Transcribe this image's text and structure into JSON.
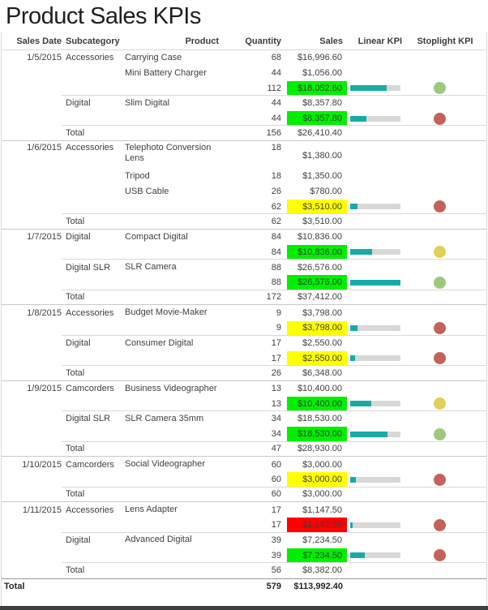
{
  "title": "Product Sales KPIs",
  "columns": [
    "Sales Date",
    "Subcategory",
    "Product",
    "Quantity",
    "Sales",
    "Linear KPI",
    "Stoplight KPI"
  ],
  "palette": {
    "cell_green": "#00f000",
    "cell_yellow": "#ffff00",
    "cell_red": "#ff0000",
    "bar_fill": "#18aba5",
    "bar_track": "#d8d8d8",
    "stoplight_green": "#9dc87e",
    "stoplight_yellow": "#e2cf56",
    "stoplight_red": "#c4625a"
  },
  "groups": [
    {
      "date": "1/5/2015",
      "rows": [
        {
          "type": "detail",
          "subcategory": "Accessories",
          "product": "Carrying Case",
          "quantity": "68",
          "sales": "$16,996.60"
        },
        {
          "type": "detail",
          "subcategory": "",
          "product": "Mini Battery Charger",
          "quantity": "44",
          "sales": "$1,056.00"
        },
        {
          "type": "subtotal",
          "quantity": "112",
          "sales": "$18,052.60",
          "sales_bg": "green",
          "kpi_percent": 72,
          "stoplight": "green"
        },
        {
          "type": "detail",
          "subcategory": "Digital",
          "product": "Slim Digital",
          "quantity": "44",
          "sales": "$8,357.80"
        },
        {
          "type": "subtotal",
          "quantity": "44",
          "sales": "$8,357.80",
          "sales_bg": "green",
          "kpi_percent": 33,
          "stoplight": "red"
        },
        {
          "type": "total",
          "label": "Total",
          "quantity": "156",
          "sales": "$26,410.40"
        }
      ]
    },
    {
      "date": "1/6/2015",
      "rows": [
        {
          "type": "detail",
          "tall": true,
          "subcategory": "Accessories",
          "product": "Telephoto Conversion Lens",
          "quantity": "18",
          "sales": "$1,380.00"
        },
        {
          "type": "detail",
          "subcategory": "",
          "product": "Tripod",
          "quantity": "18",
          "sales": "$1,350.00"
        },
        {
          "type": "detail",
          "subcategory": "",
          "product": "USB Cable",
          "quantity": "26",
          "sales": "$780.00"
        },
        {
          "type": "subtotal",
          "quantity": "62",
          "sales": "$3,510.00",
          "sales_bg": "yellow",
          "kpi_percent": 14,
          "stoplight": "red"
        },
        {
          "type": "total",
          "label": "Total",
          "quantity": "62",
          "sales": "$3,510.00"
        }
      ]
    },
    {
      "date": "1/7/2015",
      "rows": [
        {
          "type": "detail",
          "subcategory": "Digital",
          "product": "Compact Digital",
          "quantity": "84",
          "sales": "$10,836.00"
        },
        {
          "type": "subtotal",
          "quantity": "84",
          "sales": "$10,836.00",
          "sales_bg": "green",
          "kpi_percent": 43,
          "stoplight": "yellow"
        },
        {
          "type": "detail",
          "subcategory": "Digital SLR",
          "product": "SLR Camera",
          "quantity": "88",
          "sales": "$26,576.00"
        },
        {
          "type": "subtotal",
          "quantity": "88",
          "sales": "$26,576.00",
          "sales_bg": "green",
          "kpi_percent": 100,
          "stoplight": "green"
        },
        {
          "type": "total",
          "label": "Total",
          "quantity": "172",
          "sales": "$37,412.00"
        }
      ]
    },
    {
      "date": "1/8/2015",
      "rows": [
        {
          "type": "detail",
          "subcategory": "Accessories",
          "product": "Budget Movie-Maker",
          "quantity": "9",
          "sales": "$3,798.00"
        },
        {
          "type": "subtotal",
          "quantity": "9",
          "sales": "$3,798.00",
          "sales_bg": "yellow",
          "kpi_percent": 15,
          "stoplight": "red"
        },
        {
          "type": "detail",
          "subcategory": "Digital",
          "product": "Consumer Digital",
          "quantity": "17",
          "sales": "$2,550.00"
        },
        {
          "type": "subtotal",
          "quantity": "17",
          "sales": "$2,550.00",
          "sales_bg": "yellow",
          "kpi_percent": 10,
          "stoplight": "red"
        },
        {
          "type": "total",
          "label": "Total",
          "quantity": "26",
          "sales": "$6,348.00"
        }
      ]
    },
    {
      "date": "1/9/2015",
      "rows": [
        {
          "type": "detail",
          "subcategory": "Camcorders",
          "product": "Business Videographer",
          "quantity": "13",
          "sales": "$10,400.00"
        },
        {
          "type": "subtotal",
          "quantity": "13",
          "sales": "$10,400.00",
          "sales_bg": "green",
          "kpi_percent": 42,
          "stoplight": "yellow"
        },
        {
          "type": "detail",
          "subcategory": "Digital SLR",
          "product": "SLR Camera 35mm",
          "quantity": "34",
          "sales": "$18,530.00"
        },
        {
          "type": "subtotal",
          "quantity": "34",
          "sales": "$18,530.00",
          "sales_bg": "green",
          "kpi_percent": 74,
          "stoplight": "green"
        },
        {
          "type": "total",
          "label": "Total",
          "quantity": "47",
          "sales": "$28,930.00"
        }
      ]
    },
    {
      "date": "1/10/2015",
      "rows": [
        {
          "type": "detail",
          "subcategory": "Camcorders",
          "product": "Social Videographer",
          "quantity": "60",
          "sales": "$3,000.00"
        },
        {
          "type": "subtotal",
          "quantity": "60",
          "sales": "$3,000.00",
          "sales_bg": "yellow",
          "kpi_percent": 12,
          "stoplight": "red"
        },
        {
          "type": "total",
          "label": "Total",
          "quantity": "60",
          "sales": "$3,000.00"
        }
      ]
    },
    {
      "date": "1/11/2015",
      "rows": [
        {
          "type": "detail",
          "subcategory": "Accessories",
          "product": "Lens Adapter",
          "quantity": "17",
          "sales": "$1,147.50"
        },
        {
          "type": "subtotal",
          "quantity": "17",
          "sales": "$1,147.50",
          "sales_bg": "red",
          "kpi_percent": 5,
          "stoplight": "red"
        },
        {
          "type": "detail",
          "subcategory": "Digital",
          "product": "Advanced Digital",
          "quantity": "39",
          "sales": "$7,234.50"
        },
        {
          "type": "subtotal",
          "quantity": "39",
          "sales": "$7,234.50",
          "sales_bg": "green",
          "kpi_percent": 29,
          "stoplight": "red"
        },
        {
          "type": "total",
          "label": "Total",
          "quantity": "56",
          "sales": "$8,382.00"
        }
      ]
    }
  ],
  "grand_total": {
    "label": "Total",
    "quantity": "579",
    "sales": "$113,992.40"
  }
}
